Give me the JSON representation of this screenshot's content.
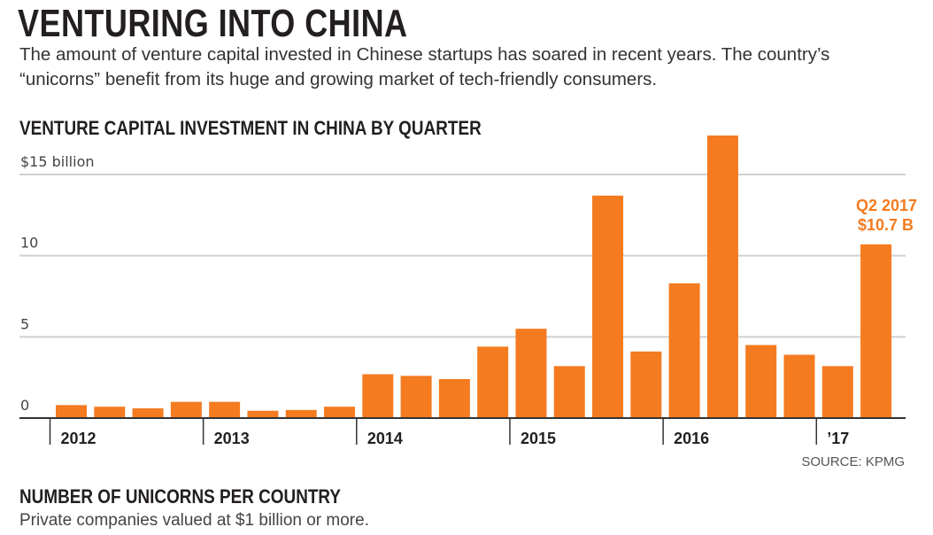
{
  "header": {
    "title": "VENTURING INTO CHINA",
    "subtitle_line1": "The amount of venture capital invested in Chinese startups has soared in recent years. The country’s",
    "subtitle_line2": "“unicorns” benefit from its huge and growing market of tech-friendly consumers."
  },
  "chart_data": {
    "type": "bar",
    "title": "VENTURE CAPITAL INVESTMENT IN CHINA BY QUARTER",
    "ylabel": "$15 billion",
    "ylim": [
      0,
      15
    ],
    "yticks": [
      {
        "value": 0,
        "label": "0"
      },
      {
        "value": 5,
        "label": "5"
      },
      {
        "value": 10,
        "label": "10"
      },
      {
        "value": 15,
        "label": "$15 billion"
      }
    ],
    "grid": true,
    "categories": [
      "Q1 2012",
      "Q2 2012",
      "Q3 2012",
      "Q4 2012",
      "Q1 2013",
      "Q2 2013",
      "Q3 2013",
      "Q4 2013",
      "Q1 2014",
      "Q2 2014",
      "Q3 2014",
      "Q4 2014",
      "Q1 2015",
      "Q2 2015",
      "Q3 2015",
      "Q4 2015",
      "Q1 2016",
      "Q2 2016",
      "Q3 2016",
      "Q4 2016",
      "Q1 2017",
      "Q2 2017"
    ],
    "values": [
      0.8,
      0.7,
      0.6,
      1.0,
      1.0,
      0.45,
      0.5,
      0.7,
      2.7,
      2.6,
      2.4,
      4.4,
      5.5,
      3.2,
      13.7,
      4.1,
      8.3,
      17.4,
      4.5,
      3.9,
      3.2,
      10.7
    ],
    "year_labels": [
      "2012",
      "2013",
      "2014",
      "2015",
      "2016",
      "’17"
    ],
    "annotation": {
      "line1": "Q2 2017",
      "line2": "$10.7 B",
      "category": "Q2 2017"
    },
    "source": "SOURCE: KPMG",
    "bar_color": "#F47B20"
  },
  "section2": {
    "title": "NUMBER OF UNICORNS PER COUNTRY",
    "subtitle": "Private companies valued at $1 billion or more."
  }
}
